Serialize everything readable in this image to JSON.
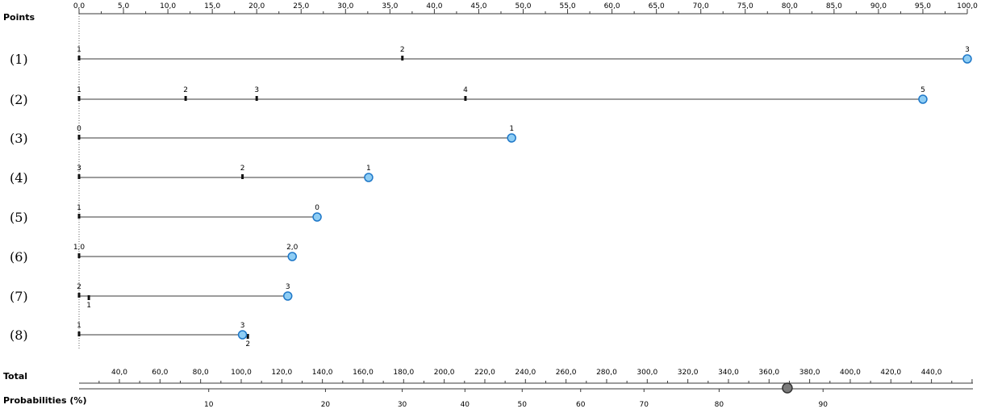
{
  "colors": {
    "line": "#3a3a3a",
    "marker_fill": "#8ecdf4",
    "marker_stroke": "#1f78c8",
    "total_marker_fill": "#7a7a7a",
    "total_marker_stroke": "#333333"
  },
  "chart_data": {
    "type": "nomogram",
    "labels": {
      "points": "Points",
      "total": "Total",
      "probabilities": "Probabilities (%)"
    },
    "points_axis": {
      "range": [
        0,
        100
      ],
      "major_step": 5,
      "minor_step": 2.5,
      "tick_labels": [
        "0,0",
        "5,0",
        "10,0",
        "15,0",
        "20,0",
        "25,0",
        "30,0",
        "35,0",
        "40,0",
        "45,0",
        "50,0",
        "55,0",
        "60,0",
        "65,0",
        "70,0",
        "75,0",
        "80,0",
        "85,0",
        "90,0",
        "95,0",
        "100,0"
      ]
    },
    "variables": [
      {
        "name": "(1)",
        "ticks": [
          {
            "label": "1",
            "points": 0
          },
          {
            "label": "2",
            "points": 36.4
          },
          {
            "label": "3",
            "points": 100
          }
        ],
        "selected_points": 100
      },
      {
        "name": "(2)",
        "ticks": [
          {
            "label": "1",
            "points": 0
          },
          {
            "label": "2",
            "points": 12.0
          },
          {
            "label": "3",
            "points": 20.0
          },
          {
            "label": "4",
            "points": 43.5
          },
          {
            "label": "5",
            "points": 95.0
          }
        ],
        "selected_points": 95.0
      },
      {
        "name": "(3)",
        "ticks": [
          {
            "label": "0",
            "points": 0
          },
          {
            "label": "1",
            "points": 48.7
          }
        ],
        "selected_points": 48.7
      },
      {
        "name": "(4)",
        "ticks": [
          {
            "label": "3",
            "points": 0
          },
          {
            "label": "2",
            "points": 18.4
          },
          {
            "label": "1",
            "points": 32.6
          }
        ],
        "selected_points": 32.6
      },
      {
        "name": "(5)",
        "ticks": [
          {
            "label": "1",
            "points": 0
          },
          {
            "label": "0",
            "points": 26.8
          }
        ],
        "selected_points": 26.8
      },
      {
        "name": "(6)",
        "ticks": [
          {
            "label": "1,0",
            "points": 0
          },
          {
            "label": "2,0",
            "points": 24.0
          }
        ],
        "selected_points": 24.0
      },
      {
        "name": "(7)",
        "ticks": [
          {
            "label": "2",
            "points": 0,
            "label_side": "above"
          },
          {
            "label": "1",
            "points": 1.1,
            "label_side": "below"
          },
          {
            "label": "3",
            "points": 23.5,
            "label_side": "above"
          }
        ],
        "selected_points": 23.5
      },
      {
        "name": "(8)",
        "ticks": [
          {
            "label": "1",
            "points": 0,
            "label_side": "above"
          },
          {
            "label": "3",
            "points": 18.4,
            "label_side": "above"
          },
          {
            "label": "2",
            "points": 19.0,
            "label_side": "below"
          }
        ],
        "selected_points": 18.4
      }
    ],
    "total_axis": {
      "tick_labels": [
        "40,0",
        "60,0",
        "80,0",
        "100,0",
        "120,0",
        "140,0",
        "160,0",
        "180,0",
        "200,0",
        "220,0",
        "240,0",
        "260,0",
        "280,0",
        "300,0",
        "320,0",
        "340,0",
        "360,0",
        "380,0",
        "400,0",
        "420,0",
        "440,0"
      ],
      "tick_values": [
        40,
        60,
        80,
        100,
        120,
        140,
        160,
        180,
        200,
        220,
        240,
        260,
        280,
        300,
        320,
        340,
        360,
        380,
        400,
        420,
        440
      ]
    },
    "probability_axis": {
      "tick_labels": [
        "10",
        "20",
        "30",
        "40",
        "50",
        "60",
        "70",
        "80",
        "90"
      ],
      "tick_values": [
        10,
        20,
        30,
        40,
        50,
        60,
        70,
        80,
        90
      ],
      "selected_percent": 86
    },
    "total_points": 369.0
  }
}
